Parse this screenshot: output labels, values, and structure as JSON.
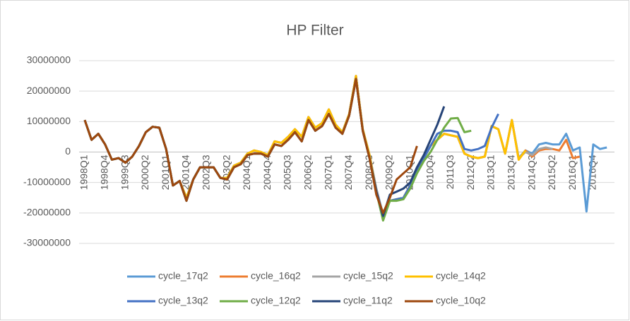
{
  "chart_data": {
    "type": "line",
    "title": "HP Filter",
    "categories": [
      "1998Q1",
      null,
      null,
      "1998Q4",
      null,
      null,
      "1999Q3",
      null,
      null,
      "2000Q2",
      null,
      null,
      "2001Q1",
      null,
      null,
      "2001Q4",
      null,
      null,
      "2002Q3",
      null,
      null,
      "2003Q2",
      null,
      null,
      "2004Q1",
      null,
      null,
      "2004Q4",
      null,
      null,
      "2005Q3",
      null,
      null,
      "2006Q2",
      null,
      null,
      "2007Q1",
      null,
      null,
      "2007Q4",
      null,
      null,
      "2008Q3",
      null,
      null,
      "2009Q2",
      null,
      null,
      "2010Q1",
      null,
      null,
      "2010Q4",
      null,
      null,
      "2011Q3",
      null,
      null,
      "2012Q2",
      null,
      null,
      "2013Q1",
      null,
      null,
      "2013Q4",
      null,
      null,
      "2014Q3",
      null,
      null,
      "2015Q2",
      null,
      null,
      "2016Q1",
      null,
      null,
      "2016Q4",
      null,
      null
    ],
    "ylim": [
      -30000000,
      30000000
    ],
    "yticks": [
      -30000000,
      -20000000,
      -10000000,
      0,
      10000000,
      20000000,
      30000000
    ],
    "grid": true,
    "legend": "bottom",
    "series": [
      {
        "name": "cycle_17q2",
        "color": "#5b9bd5",
        "values": [
          10500000,
          4000000,
          6000000,
          2500000,
          -2500000,
          -2000000,
          -3500000,
          -1500000,
          2000000,
          6500000,
          8300000,
          8000000,
          1000000,
          -11000000,
          -9500000,
          -15000000,
          -9000000,
          -5000000,
          -5000000,
          -5000000,
          -8500000,
          -8500000,
          -4500000,
          -3500000,
          -500000,
          500000,
          0,
          -1000000,
          3500000,
          3000000,
          5000000,
          7500000,
          5000000,
          11500000,
          8000000,
          9500000,
          14000000,
          9000000,
          6500000,
          12500000,
          25000000,
          7500000,
          -1000000,
          -12000000,
          -20500000,
          -16000000,
          -15500000,
          -15000000,
          -11000000,
          -6000000,
          -2000000,
          2000000,
          4000000,
          6000000,
          5500000,
          5000000,
          -500000,
          -1500000,
          -2000000,
          -1500000,
          8500000,
          7500000,
          -500000,
          10500000,
          -2000000,
          500000,
          -500000,
          2500000,
          3000000,
          2500000,
          2500000,
          6000000,
          500000,
          1500000,
          -19500000,
          2500000,
          1000000,
          1500000
        ]
      },
      {
        "name": "cycle_16q2",
        "color": "#ed7d31",
        "values": [
          10500000,
          4000000,
          6000000,
          2500000,
          -2500000,
          -2000000,
          -3500000,
          -1500000,
          2000000,
          6500000,
          8300000,
          8000000,
          1000000,
          -11000000,
          -9500000,
          -15000000,
          -9000000,
          -5000000,
          -5000000,
          -5000000,
          -8500000,
          -8500000,
          -4500000,
          -3500000,
          -500000,
          500000,
          0,
          -1000000,
          3500000,
          3000000,
          5000000,
          7500000,
          5000000,
          11500000,
          8000000,
          9500000,
          14000000,
          9000000,
          6500000,
          12500000,
          25000000,
          7500000,
          -1000000,
          -12500000,
          -21000000,
          -16000000,
          -15500000,
          -15000000,
          -11000000,
          -6000000,
          -2000000,
          2000000,
          4000000,
          6000000,
          5500000,
          5000000,
          -500000,
          -1500000,
          -2000000,
          -1500000,
          8500000,
          7500000,
          -500000,
          10500000,
          -2500000,
          500000,
          -1500000,
          500000,
          1000000,
          1000000,
          500000,
          4000000,
          -2000000,
          -1500000,
          null,
          null,
          null,
          null
        ]
      },
      {
        "name": "cycle_15q2",
        "color": "#a5a5a5",
        "values": [
          10500000,
          4000000,
          6000000,
          2500000,
          -2500000,
          -2000000,
          -3500000,
          -1500000,
          2000000,
          6500000,
          8300000,
          8000000,
          1000000,
          -11000000,
          -9500000,
          -15000000,
          -9000000,
          -5000000,
          -5000000,
          -5000000,
          -8500000,
          -8500000,
          -4500000,
          -3500000,
          -500000,
          500000,
          0,
          -1000000,
          3500000,
          3000000,
          5000000,
          7500000,
          5000000,
          11500000,
          8000000,
          9500000,
          14000000,
          9000000,
          6500000,
          12500000,
          25000000,
          7500000,
          -1000000,
          -13000000,
          -21500000,
          -16000000,
          -15500000,
          -15000000,
          -11000000,
          -6000000,
          -2000000,
          2000000,
          4000000,
          6000000,
          5500000,
          5000000,
          -500000,
          -1500000,
          -2000000,
          -1500000,
          8500000,
          7500000,
          -500000,
          10500000,
          -2000000,
          0,
          -1000000,
          1000000,
          1500000,
          1000000,
          null,
          null,
          null,
          null,
          null,
          null,
          null,
          null
        ]
      },
      {
        "name": "cycle_14q2",
        "color": "#ffc000",
        "values": [
          10500000,
          4000000,
          6000000,
          2500000,
          -2500000,
          -2000000,
          -3500000,
          -1500000,
          2000000,
          6500000,
          8300000,
          8000000,
          1000000,
          -11000000,
          -9500000,
          -15000000,
          -9000000,
          -5000000,
          -5000000,
          -5000000,
          -8500000,
          -8500000,
          -4500000,
          -3500000,
          -500000,
          500000,
          0,
          -1000000,
          3500000,
          3000000,
          5000000,
          7500000,
          5000000,
          11500000,
          8000000,
          9500000,
          14000000,
          9000000,
          6500000,
          12500000,
          25000000,
          7500000,
          -1000000,
          -13000000,
          -21500000,
          -16000000,
          -15500000,
          -15000000,
          -11000000,
          -6000000,
          -2000000,
          2000000,
          4000000,
          6000000,
          5500000,
          5000000,
          -500000,
          -1500000,
          -2000000,
          -1500000,
          8500000,
          7500000,
          -500000,
          10500000,
          -2500000,
          500000,
          null,
          null,
          null,
          null,
          null,
          null,
          null,
          null,
          null,
          null,
          null,
          null
        ]
      },
      {
        "name": "cycle_13q2",
        "color": "#4472c4",
        "values": [
          10500000,
          4000000,
          6000000,
          2500000,
          -2500000,
          -2000000,
          -3500000,
          -1500000,
          2000000,
          6500000,
          8300000,
          8000000,
          1000000,
          -11000000,
          -9500000,
          -16000000,
          -9000000,
          -5000000,
          -5000000,
          -5000000,
          -8500000,
          -9000000,
          -5000000,
          -4000000,
          -1000000,
          -500000,
          -500000,
          -1500000,
          2500000,
          2000000,
          4000000,
          6500000,
          3500000,
          10500000,
          7000000,
          8500000,
          12500000,
          8000000,
          6000000,
          12000000,
          24000000,
          7000000,
          -2000000,
          -13000000,
          -21000000,
          -16000000,
          -15500000,
          -15000000,
          -11000000,
          -6000000,
          -2000000,
          2000000,
          6000000,
          7000000,
          7000000,
          6500000,
          1000000,
          500000,
          1000000,
          2000000,
          8000000,
          12500000,
          null,
          null,
          null,
          null,
          null,
          null,
          null,
          null,
          null,
          null,
          null,
          null,
          null,
          null,
          null,
          null
        ]
      },
      {
        "name": "cycle_12q2",
        "color": "#70ad47",
        "values": [
          10500000,
          4000000,
          6000000,
          2500000,
          -2500000,
          -2000000,
          -3500000,
          -1500000,
          2000000,
          6500000,
          8300000,
          8000000,
          1000000,
          -11000000,
          -9500000,
          -16000000,
          -9000000,
          -5000000,
          -5000000,
          -5000000,
          -8500000,
          -9000000,
          -5000000,
          -4000000,
          -1000000,
          -500000,
          -500000,
          -1500000,
          2500000,
          2000000,
          4000000,
          6500000,
          3500000,
          10500000,
          7000000,
          8500000,
          12500000,
          8000000,
          6000000,
          12000000,
          24000000,
          7000000,
          -2000000,
          -13000000,
          -22500000,
          -16000000,
          -16000000,
          -15500000,
          -12000000,
          -7000000,
          -3000000,
          0,
          4000000,
          8000000,
          11000000,
          11200000,
          6500000,
          7000000,
          null,
          null,
          null,
          null,
          null,
          null,
          null,
          null,
          null,
          null,
          null,
          null,
          null,
          null,
          null,
          null,
          null,
          null,
          null,
          null
        ]
      },
      {
        "name": "cycle_11q2",
        "color": "#264478",
        "values": [
          10500000,
          4000000,
          6000000,
          2500000,
          -2500000,
          -2000000,
          -3500000,
          -1500000,
          2000000,
          6500000,
          8300000,
          8000000,
          1000000,
          -11000000,
          -9500000,
          -16000000,
          -9000000,
          -5000000,
          -5000000,
          -5000000,
          -8500000,
          -9000000,
          -5000000,
          -4000000,
          -1000000,
          -500000,
          -500000,
          -1500000,
          2500000,
          2000000,
          4000000,
          6500000,
          3500000,
          10500000,
          7000000,
          8500000,
          12500000,
          8000000,
          6000000,
          12000000,
          24000000,
          7000000,
          -2000000,
          -13000000,
          -21000000,
          -14000000,
          -13000000,
          -12000000,
          -10000000,
          -5000000,
          -1000000,
          4000000,
          9000000,
          15000000,
          null,
          null,
          null,
          null,
          null,
          null,
          null,
          null,
          null,
          null,
          null,
          null,
          null,
          null,
          null,
          null,
          null,
          null,
          null,
          null,
          null,
          null,
          null,
          null
        ]
      },
      {
        "name": "cycle_10q2",
        "color": "#9e480e",
        "values": [
          10500000,
          4000000,
          6000000,
          2500000,
          -2500000,
          -2000000,
          -3500000,
          -1500000,
          2000000,
          6500000,
          8300000,
          8000000,
          1000000,
          -11000000,
          -9500000,
          -16000000,
          -9000000,
          -5000000,
          -5000000,
          -5000000,
          -8500000,
          -9000000,
          -5000000,
          -4000000,
          -1000000,
          -500000,
          -500000,
          -1500000,
          2500000,
          2000000,
          4000000,
          6500000,
          3500000,
          10500000,
          7000000,
          8500000,
          12500000,
          8000000,
          6000000,
          12000000,
          24000000,
          7000000,
          -2000000,
          -14000000,
          -20000000,
          -15000000,
          -9000000,
          -7000000,
          -5000000,
          2000000,
          null,
          null,
          null,
          null,
          null,
          null,
          null,
          null,
          null,
          null,
          null,
          null,
          null,
          null,
          null,
          null,
          null,
          null,
          null,
          null,
          null,
          null,
          null,
          null,
          null,
          null,
          null,
          null
        ]
      }
    ]
  }
}
